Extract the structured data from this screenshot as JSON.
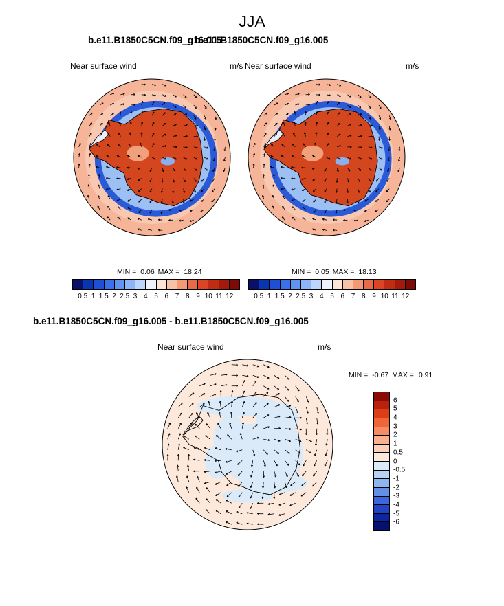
{
  "figure": {
    "season": "JJA"
  },
  "panels": [
    {
      "case": "b.e11.B1850C5CN.f09_g16.005",
      "variable": "Near surface wind",
      "units": "m/s",
      "min_label": "MIN =",
      "min_value": "0.06",
      "max_label": "MAX =",
      "max_value": "18.24"
    },
    {
      "case": "b.e11.B1850C5CN.f09_g16.005",
      "variable": "Near surface wind",
      "units": "m/s",
      "min_label": "MIN =",
      "min_value": "0.05",
      "max_label": "MAX =",
      "max_value": "18.13"
    }
  ],
  "diff_panel": {
    "title": "b.e11.B1850C5CN.f09_g16.005 - b.e11.B1850C5CN.f09_g16.005",
    "variable": "Near surface wind",
    "units": "m/s",
    "min_label": "MIN =",
    "min_value": "-0.67",
    "max_label": "MAX =",
    "max_value": "0.91"
  },
  "colorbar_wind": {
    "ticks": [
      "0.5",
      "1",
      "1.5",
      "2",
      "2.5",
      "3",
      "4",
      "5",
      "6",
      "7",
      "8",
      "9",
      "10",
      "11",
      "12"
    ],
    "colors": [
      "#08106b",
      "#0a35b0",
      "#1e50d6",
      "#3a70ec",
      "#6094f2",
      "#8db4f6",
      "#bcd5f8",
      "#eef3fb",
      "#fce4d6",
      "#f8c2a4",
      "#f19a75",
      "#e86a48",
      "#dc4424",
      "#c02c12",
      "#a31a0c",
      "#7e0a05"
    ]
  },
  "colorbar_diff": {
    "ticks": [
      "6",
      "5",
      "4",
      "3",
      "2",
      "1",
      "0.5",
      "0",
      "-0.5",
      "-1",
      "-2",
      "-3",
      "-4",
      "-5",
      "-6"
    ],
    "colors": [
      "#8a0b05",
      "#b8220c",
      "#dd3d16",
      "#ee6538",
      "#f58c63",
      "#f9b08f",
      "#fccfb8",
      "#fde9dc",
      "#dbeaf8",
      "#b7d2f3",
      "#8fb4ef",
      "#648fe6",
      "#3c66dc",
      "#2143c4",
      "#0d25a2",
      "#06106e"
    ]
  }
}
